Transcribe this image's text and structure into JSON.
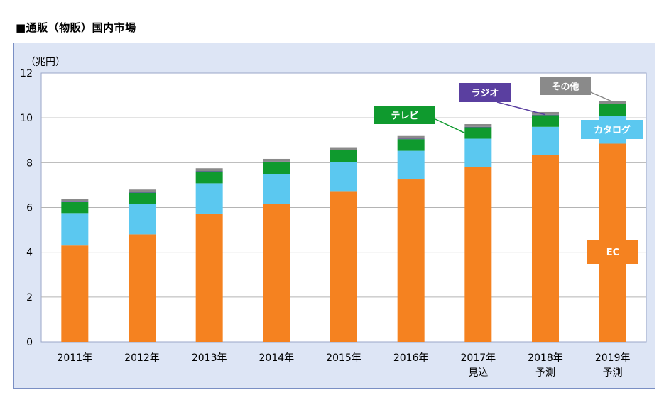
{
  "page": {
    "title": "■通販（物販）国内市場"
  },
  "chart_data": {
    "type": "bar",
    "stacked": true,
    "unit_label": "（兆円）",
    "ylim": [
      0,
      12
    ],
    "yticks": [
      0,
      2,
      4,
      6,
      8,
      10,
      12
    ],
    "grid": true,
    "categories": [
      [
        "2011年"
      ],
      [
        "2012年"
      ],
      [
        "2013年"
      ],
      [
        "2014年"
      ],
      [
        "2015年"
      ],
      [
        "2016年"
      ],
      [
        "2017年",
        "見込"
      ],
      [
        "2018年",
        "予測"
      ],
      [
        "2019年",
        "予測"
      ]
    ],
    "series": [
      {
        "name": "EC",
        "color": "#f58220",
        "values": [
          4.3,
          4.8,
          5.7,
          6.15,
          6.7,
          7.25,
          7.8,
          8.35,
          8.85
        ]
      },
      {
        "name": "カタログ",
        "color": "#5bc8f0",
        "values": [
          1.42,
          1.36,
          1.38,
          1.35,
          1.32,
          1.28,
          1.27,
          1.25,
          1.25
        ]
      },
      {
        "name": "テレビ",
        "color": "#0f9a2e",
        "values": [
          0.52,
          0.5,
          0.53,
          0.53,
          0.53,
          0.52,
          0.51,
          0.52,
          0.51
        ]
      },
      {
        "name": "ラジオ",
        "color": "#5a3fa0",
        "values": [
          0.02,
          0.02,
          0.02,
          0.02,
          0.02,
          0.02,
          0.02,
          0.02,
          0.02
        ]
      },
      {
        "name": "その他",
        "color": "#8a8a8a",
        "values": [
          0.12,
          0.12,
          0.12,
          0.12,
          0.12,
          0.12,
          0.12,
          0.12,
          0.12
        ]
      }
    ]
  }
}
